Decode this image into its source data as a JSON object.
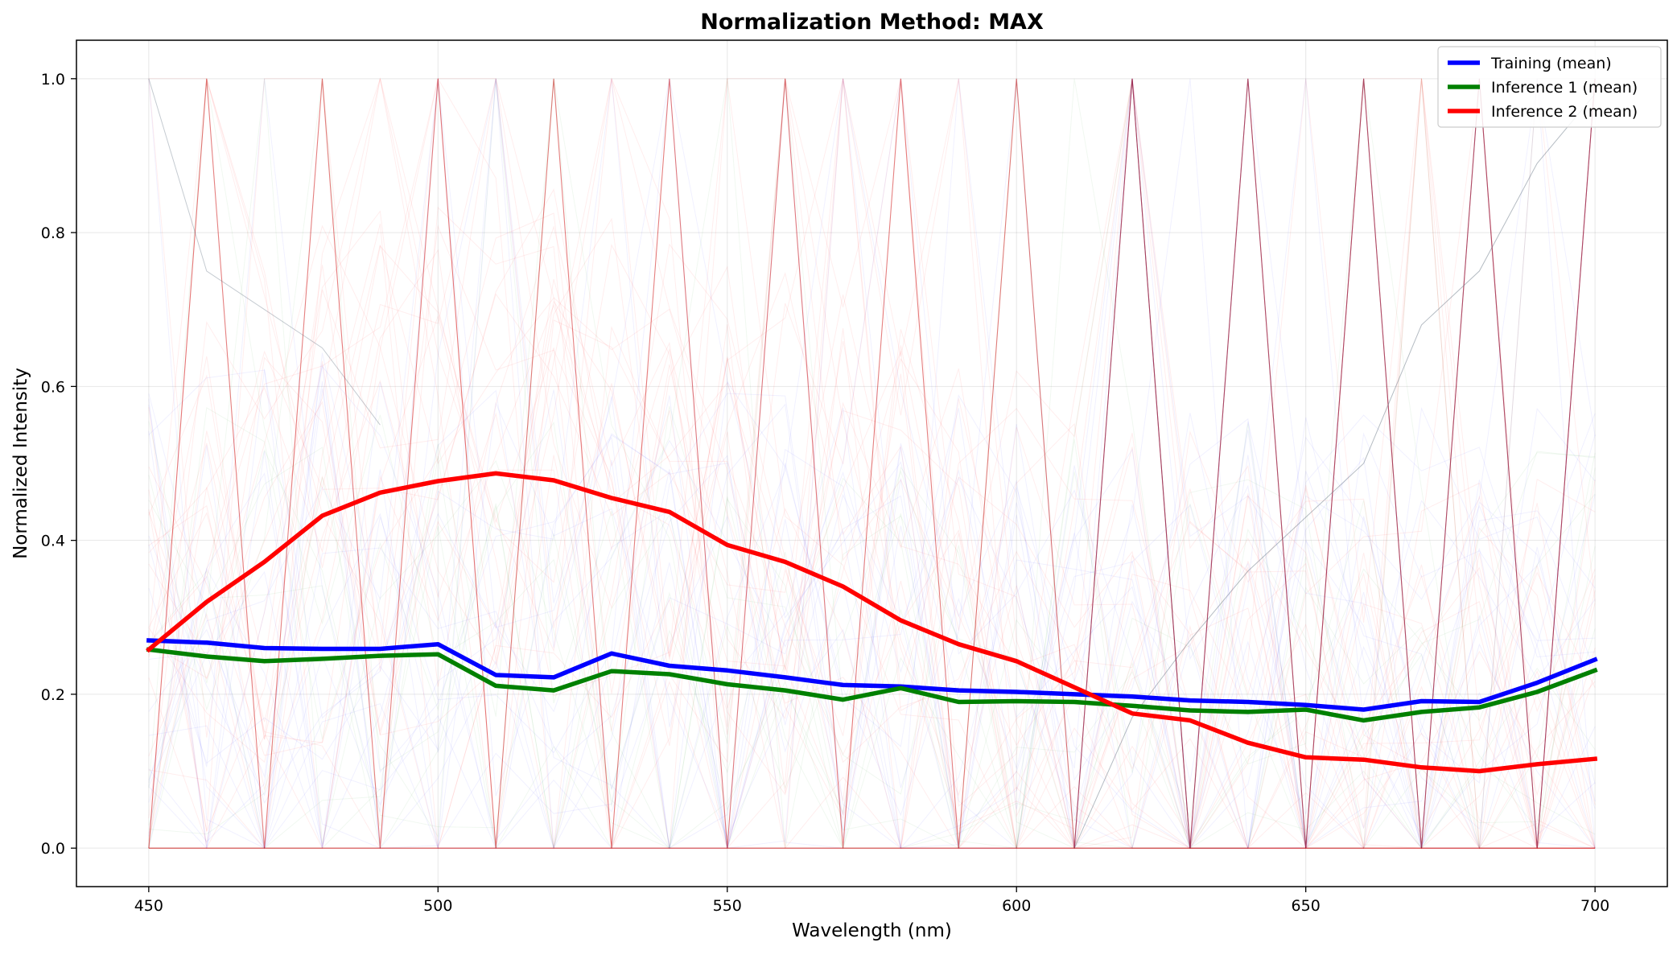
{
  "chart_data": {
    "type": "line",
    "title": "Normalization Method: MAX",
    "xlabel": "Wavelength (nm)",
    "ylabel": "Normalized Intensity",
    "xlim": [
      437.5,
      712.5
    ],
    "ylim": [
      -0.05,
      1.05
    ],
    "x_ticks": [
      "450",
      "500",
      "550",
      "600",
      "650",
      "700"
    ],
    "y_ticks": [
      "0.0",
      "0.2",
      "0.4",
      "0.6",
      "0.8",
      "1.0"
    ],
    "grid": true,
    "legend_position": "top-right",
    "x": [
      450,
      460,
      470,
      480,
      490,
      500,
      510,
      520,
      530,
      540,
      550,
      560,
      570,
      580,
      590,
      600,
      610,
      620,
      630,
      640,
      650,
      660,
      670,
      680,
      690,
      700
    ],
    "series": [
      {
        "name": "Training (mean)",
        "color": "#0000ff",
        "values": [
          0.27,
          0.267,
          0.26,
          0.259,
          0.259,
          0.265,
          0.225,
          0.222,
          0.253,
          0.237,
          0.231,
          0.222,
          0.212,
          0.21,
          0.205,
          0.203,
          0.2,
          0.197,
          0.192,
          0.19,
          0.186,
          0.18,
          0.191,
          0.19,
          0.215,
          0.245
        ]
      },
      {
        "name": "Inference 1 (mean)",
        "color": "#008000",
        "values": [
          0.258,
          0.249,
          0.243,
          0.246,
          0.25,
          0.252,
          0.211,
          0.205,
          0.23,
          0.226,
          0.213,
          0.205,
          0.193,
          0.208,
          0.19,
          0.191,
          0.19,
          0.185,
          0.179,
          0.177,
          0.18,
          0.166,
          0.177,
          0.183,
          0.203,
          0.231
        ]
      },
      {
        "name": "Inference 2 (mean)",
        "color": "#ff0000",
        "values": [
          0.258,
          0.32,
          0.372,
          0.432,
          0.462,
          0.477,
          0.487,
          0.478,
          0.455,
          0.437,
          0.394,
          0.372,
          0.34,
          0.296,
          0.265,
          0.243,
          0.209,
          0.175,
          0.166,
          0.137,
          0.118,
          0.115,
          0.105,
          0.1,
          0.109,
          0.116
        ]
      }
    ],
    "background_traces": {
      "zigzag_red": {
        "color": "#cc0000",
        "values": [
          0,
          1,
          0,
          1,
          0,
          1,
          0,
          1,
          0,
          1,
          0,
          1,
          0,
          1,
          0,
          1,
          0,
          1,
          0,
          1,
          0,
          1,
          0,
          1,
          0,
          1
        ]
      },
      "zigzag_purple": {
        "color": "#6a0a4a",
        "x_from": 610,
        "values": [
          0,
          1,
          0,
          1,
          0,
          1,
          0,
          1,
          0,
          1
        ]
      },
      "rising_gray": {
        "color": "#5a6a7a",
        "x": [
          610,
          620,
          630,
          640,
          650,
          660,
          670,
          680,
          690,
          700
        ],
        "values": [
          0.0,
          0.17,
          0.27,
          0.36,
          0.43,
          0.5,
          0.68,
          0.75,
          0.89,
          0.98
        ]
      },
      "decline_gray": {
        "color": "#5a6a7a",
        "x": [
          450,
          460,
          470,
          480,
          490
        ],
        "values": [
          1.0,
          0.75,
          0.7,
          0.65,
          0.55
        ]
      }
    }
  }
}
